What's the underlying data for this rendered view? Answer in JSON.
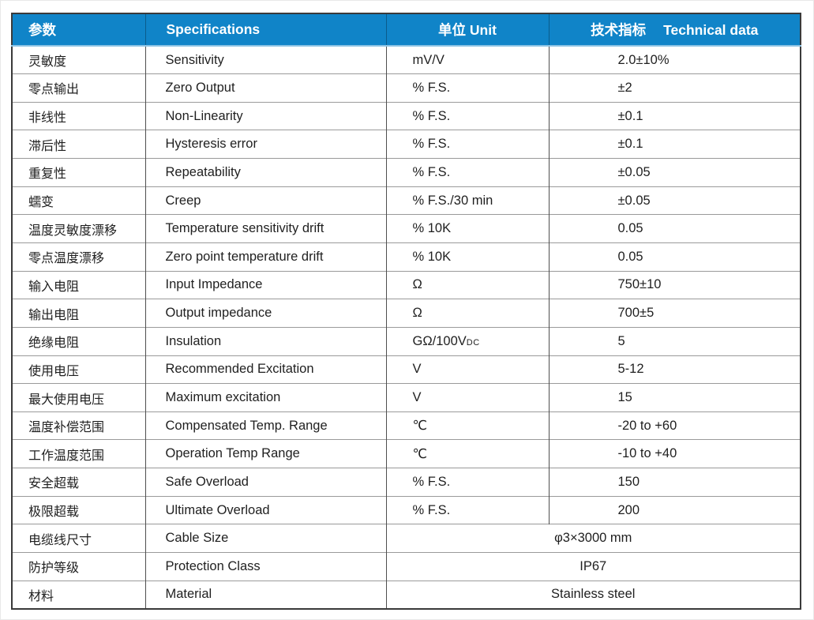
{
  "table": {
    "header_bg": "#1084c8",
    "header": {
      "col1": "参数",
      "col2": "Specifications",
      "col3": "单位 Unit",
      "col4_cn": "技术指标",
      "col4_en": "Technical data"
    },
    "rows": [
      {
        "cn": "灵敏度",
        "en": "Sensitivity",
        "unit": "mV/V",
        "value": "2.0±10%"
      },
      {
        "cn": "零点输出",
        "en": "Zero Output",
        "unit": "% F.S.",
        "value": "±2"
      },
      {
        "cn": "非线性",
        "en": "Non-Linearity",
        "unit": "% F.S.",
        "value": "±0.1"
      },
      {
        "cn": "滞后性",
        "en": "Hysteresis error",
        "unit": "% F.S.",
        "value": "±0.1"
      },
      {
        "cn": "重复性",
        "en": "Repeatability",
        "unit": "% F.S.",
        "value": "±0.05"
      },
      {
        "cn": "蠕变",
        "en": "Creep",
        "unit": "% F.S./30 min",
        "value": "±0.05"
      },
      {
        "cn": "温度灵敏度漂移",
        "en": "Temperature sensitivity drift",
        "unit": "% 10K",
        "value": "0.05"
      },
      {
        "cn": "零点温度漂移",
        "en": "Zero point temperature drift",
        "unit": "% 10K",
        "value": "0.05"
      },
      {
        "cn": "输入电阻",
        "en": "Input Impedance",
        "unit": "Ω",
        "value": "750±10"
      },
      {
        "cn": "输出电阻",
        "en": "Output impedance",
        "unit": "Ω",
        "value": "700±5"
      },
      {
        "cn": "绝缘电阻",
        "en": "Insulation",
        "unit": "GΩ/100V",
        "unit_small": "DC",
        "value": "5"
      },
      {
        "cn": "使用电压",
        "en": "Recommended Excitation",
        "unit": "V",
        "value": "5-12"
      },
      {
        "cn": "最大使用电压",
        "en": "Maximum excitation",
        "unit": "V",
        "value": "15"
      },
      {
        "cn": "温度补偿范围",
        "en": "Compensated Temp. Range",
        "unit": "℃",
        "value": "-20 to +60"
      },
      {
        "cn": "工作温度范围",
        "en": "Operation Temp Range",
        "unit": "℃",
        "value": "-10 to +40"
      },
      {
        "cn": "安全超载",
        "en": "Safe Overload",
        "unit": "% F.S.",
        "value": "150"
      },
      {
        "cn": "极限超载",
        "en": "Ultimate Overload",
        "unit": "% F.S.",
        "value": "200"
      },
      {
        "cn": "电缆线尺寸",
        "en": "Cable Size",
        "merged": "φ3×3000 mm"
      },
      {
        "cn": "防护等级",
        "en": "Protection Class",
        "merged": "IP67"
      },
      {
        "cn": "材料",
        "en": "Material",
        "merged": "Stainless steel"
      }
    ]
  }
}
